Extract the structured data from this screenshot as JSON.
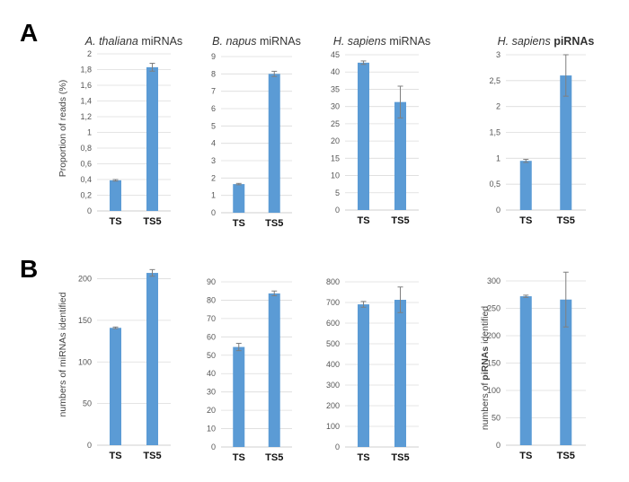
{
  "panels": [
    {
      "letter": "A"
    },
    {
      "letter": "B"
    }
  ],
  "y_labels": {
    "A": "Proportion of reads (%)",
    "B_left": "numbers of miRNAs identified",
    "B_right_prefix": "numbers of ",
    "B_right_bold": "piRNAs",
    "B_right_suffix": " identified"
  },
  "bar_color": "#5b9bd5",
  "chart_data": [
    {
      "type": "bar",
      "panel": "A",
      "title_parts": [
        {
          "text": "A. thaliana",
          "style": "italic"
        },
        {
          "text": " miRNAs",
          "style": "normal"
        }
      ],
      "categories": [
        "TS",
        "TS5"
      ],
      "values": [
        0.39,
        1.83
      ],
      "errors": [
        0.01,
        0.05
      ],
      "ylim": [
        0,
        2
      ],
      "yticks": [
        0,
        0.2,
        0.4,
        0.6,
        0.8,
        1,
        1.2,
        1.4,
        1.6,
        1.8,
        2
      ],
      "yticklabels": [
        "0",
        "0,2",
        "0,4",
        "0,6",
        "0,8",
        "1",
        "1,2",
        "1,4",
        "1,6",
        "1,8",
        "2"
      ],
      "grid": true
    },
    {
      "type": "bar",
      "panel": "A",
      "title_parts": [
        {
          "text": "B. napus",
          "style": "italic"
        },
        {
          "text": " miRNAs",
          "style": "normal"
        }
      ],
      "categories": [
        "TS",
        "TS5"
      ],
      "values": [
        1.65,
        8.0
      ],
      "errors": [
        0.04,
        0.15
      ],
      "ylim": [
        0,
        9
      ],
      "yticks": [
        0,
        1,
        2,
        3,
        4,
        5,
        6,
        7,
        8,
        9
      ],
      "yticklabels": [
        "0",
        "1",
        "2",
        "3",
        "4",
        "5",
        "6",
        "7",
        "8",
        "9"
      ],
      "grid": true
    },
    {
      "type": "bar",
      "panel": "A",
      "title_parts": [
        {
          "text": "H. sapiens",
          "style": "italic"
        },
        {
          "text": " miRNAs",
          "style": "normal"
        }
      ],
      "categories": [
        "TS",
        "TS5"
      ],
      "values": [
        42.7,
        31.3
      ],
      "errors": [
        0.5,
        4.6
      ],
      "ylim": [
        0,
        45
      ],
      "yticks": [
        0,
        5,
        10,
        15,
        20,
        25,
        30,
        35,
        40,
        45
      ],
      "yticklabels": [
        "0",
        "5",
        "10",
        "15",
        "20",
        "25",
        "30",
        "35",
        "40",
        "45"
      ],
      "grid": true
    },
    {
      "type": "bar",
      "panel": "A",
      "title_parts": [
        {
          "text": "H. sapiens",
          "style": "italic"
        },
        {
          "text": " piRNAs",
          "style": "bold"
        }
      ],
      "categories": [
        "TS",
        "TS5"
      ],
      "values": [
        0.95,
        2.6
      ],
      "errors": [
        0.03,
        0.4
      ],
      "ylim": [
        0,
        3
      ],
      "yticks": [
        0,
        0.5,
        1,
        1.5,
        2,
        2.5,
        3
      ],
      "yticklabels": [
        "0",
        "0,5",
        "1",
        "1,5",
        "2",
        "2,5",
        "3"
      ],
      "grid": true
    },
    {
      "type": "bar",
      "panel": "B",
      "categories": [
        "TS",
        "TS5"
      ],
      "values": [
        141,
        207
      ],
      "errors": [
        1,
        4
      ],
      "ylim": [
        0,
        220
      ],
      "yticks": [
        0,
        50,
        100,
        150,
        200
      ],
      "yticklabels": [
        "0",
        "50",
        "100",
        "150",
        "200"
      ],
      "grid": true
    },
    {
      "type": "bar",
      "panel": "B",
      "categories": [
        "TS",
        "TS5"
      ],
      "values": [
        54.5,
        83.7
      ],
      "errors": [
        2,
        1.3
      ],
      "ylim": [
        0,
        90
      ],
      "yticks": [
        0,
        10,
        20,
        30,
        40,
        50,
        60,
        70,
        80,
        90
      ],
      "yticklabels": [
        "0",
        "10",
        "20",
        "30",
        "40",
        "50",
        "60",
        "70",
        "80",
        "90"
      ],
      "grid": true
    },
    {
      "type": "bar",
      "panel": "B",
      "categories": [
        "TS",
        "TS5"
      ],
      "values": [
        691,
        713
      ],
      "errors": [
        14,
        62
      ],
      "ylim": [
        0,
        800
      ],
      "yticks": [
        0,
        100,
        200,
        300,
        400,
        500,
        600,
        700,
        800
      ],
      "yticklabels": [
        "0",
        "100",
        "200",
        "300",
        "400",
        "500",
        "600",
        "700",
        "800"
      ],
      "grid": true
    },
    {
      "type": "bar",
      "panel": "B",
      "categories": [
        "TS",
        "TS5"
      ],
      "values": [
        272,
        266
      ],
      "errors": [
        2,
        50
      ],
      "ylim": [
        0,
        300
      ],
      "yticks": [
        0,
        50,
        100,
        150,
        200,
        250,
        300
      ],
      "yticklabels": [
        "0",
        "50",
        "100",
        "150",
        "200",
        "250",
        "300"
      ],
      "grid": true
    }
  ]
}
